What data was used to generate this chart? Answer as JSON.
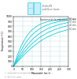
{
  "title": "",
  "ylabel": "Température (°C)",
  "xlabel": "Massivité  (m⁻¹)",
  "legend_title": "Épaisseur de la projection",
  "curves_labels": [
    "10 mm",
    "20 mm",
    "30 mm",
    "40 mm",
    "50 mm"
  ],
  "x_range": [
    0,
    300
  ],
  "y_range": [
    0,
    1000
  ],
  "x_ticks": [
    0,
    50,
    100,
    150,
    200,
    250,
    300
  ],
  "y_ticks": [
    0,
    100,
    200,
    300,
    400,
    500,
    600,
    700,
    800,
    900,
    1000
  ],
  "grid_color": "#bbdddd",
  "curve_color": "#00ccdd",
  "bg_color": "#ffffff",
  "footnote1": "λ : coefficient de conductivité thermique du feu (W/...)",
  "footnote2": "e : épaisseur (mm)",
  "window_label1": "Profils IPE",
  "window_label2": "profilés en lames",
  "curve_x": [
    0,
    20,
    40,
    60,
    80,
    100,
    120,
    140,
    160,
    180,
    200,
    220,
    240,
    260,
    280,
    300
  ],
  "curves_y": [
    [
      0,
      220,
      400,
      540,
      650,
      730,
      790,
      835,
      865,
      890,
      908,
      922,
      933,
      942,
      950,
      956
    ],
    [
      0,
      170,
      315,
      440,
      545,
      630,
      695,
      748,
      790,
      825,
      852,
      874,
      892,
      907,
      920,
      930
    ],
    [
      0,
      130,
      248,
      355,
      450,
      530,
      598,
      655,
      703,
      743,
      776,
      804,
      828,
      848,
      865,
      880
    ],
    [
      0,
      105,
      200,
      292,
      375,
      450,
      515,
      572,
      621,
      663,
      699,
      730,
      757,
      780,
      800,
      818
    ],
    [
      0,
      85,
      163,
      240,
      312,
      378,
      437,
      490,
      537,
      578,
      614,
      646,
      674,
      699,
      721,
      740
    ]
  ],
  "win_color": "#66ddee",
  "win_fill": "#cceeff"
}
